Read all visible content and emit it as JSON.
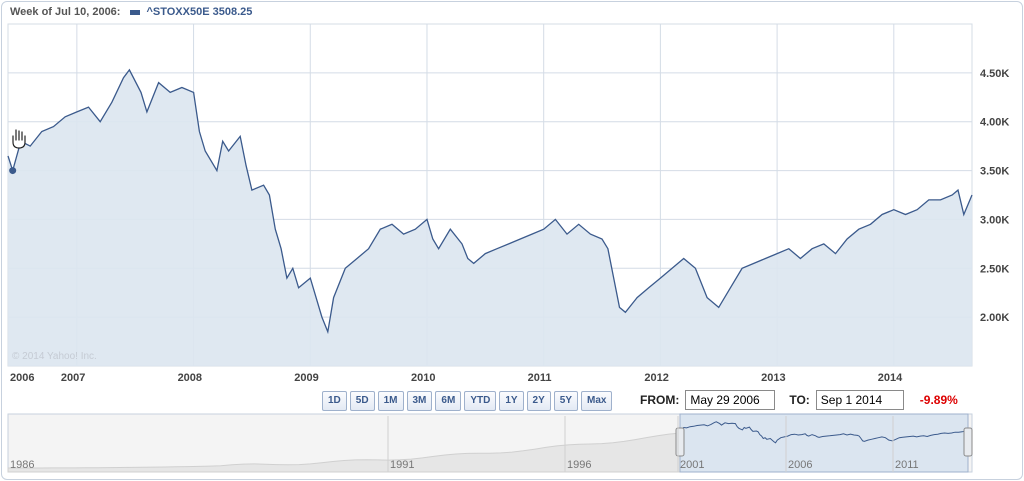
{
  "header": {
    "week_label": "Week of Jul 10, 2006:",
    "series_label": "^STOXX50E 3508.25",
    "series_color": "#3b5a8c"
  },
  "copyright": "© 2014 Yahoo! Inc.",
  "range_buttons": [
    "1D",
    "5D",
    "1M",
    "3M",
    "6M",
    "YTD",
    "1Y",
    "2Y",
    "5Y",
    "Max"
  ],
  "range": {
    "from_label": "FROM:",
    "from_value": "May 29 2006",
    "to_label": "TO:",
    "to_value": "Sep 1 2014",
    "change": "-9.89%"
  },
  "colors": {
    "line": "#3b5a8c",
    "fill": "#dbe5f0",
    "grid": "#d4dce6",
    "navigator_fill": "#e6e6e6",
    "change": "#dd0000"
  },
  "chart_data": {
    "type": "area",
    "x_ticks": [
      "2006",
      "2007",
      "2008",
      "2009",
      "2010",
      "2011",
      "2012",
      "2013",
      "2014"
    ],
    "x_tick_years": [
      2006.4,
      2007.0,
      2008.0,
      2009.0,
      2010.0,
      2011.0,
      2012.0,
      2013.0,
      2014.0
    ],
    "y_ticks": [
      "2.00K",
      "2.50K",
      "3.00K",
      "3.50K",
      "4.00K",
      "4.50K"
    ],
    "y_tick_values": [
      2000,
      2500,
      3000,
      3500,
      4000,
      4500
    ],
    "xlim": [
      2006.41,
      2014.67
    ],
    "ylim": [
      1500,
      5000
    ],
    "grid": true,
    "x": [
      2006.41,
      2006.45,
      2006.52,
      2006.6,
      2006.7,
      2006.8,
      2006.9,
      2007.0,
      2007.1,
      2007.2,
      2007.3,
      2007.4,
      2007.45,
      2007.55,
      2007.6,
      2007.7,
      2007.8,
      2007.9,
      2008.0,
      2008.05,
      2008.1,
      2008.2,
      2008.25,
      2008.3,
      2008.4,
      2008.45,
      2008.5,
      2008.6,
      2008.65,
      2008.7,
      2008.75,
      2008.8,
      2008.85,
      2008.9,
      2009.0,
      2009.1,
      2009.15,
      2009.2,
      2009.3,
      2009.4,
      2009.5,
      2009.6,
      2009.7,
      2009.8,
      2009.9,
      2010.0,
      2010.05,
      2010.1,
      2010.2,
      2010.3,
      2010.35,
      2010.4,
      2010.5,
      2010.6,
      2010.7,
      2010.8,
      2010.9,
      2011.0,
      2011.1,
      2011.2,
      2011.3,
      2011.4,
      2011.5,
      2011.55,
      2011.6,
      2011.65,
      2011.7,
      2011.8,
      2011.9,
      2012.0,
      2012.1,
      2012.2,
      2012.3,
      2012.4,
      2012.5,
      2012.6,
      2012.7,
      2012.8,
      2012.9,
      2013.0,
      2013.1,
      2013.2,
      2013.3,
      2013.4,
      2013.5,
      2013.6,
      2013.7,
      2013.8,
      2013.9,
      2014.0,
      2014.1,
      2014.2,
      2014.3,
      2014.4,
      2014.5,
      2014.55,
      2014.6,
      2014.67
    ],
    "y": [
      3650,
      3500,
      3800,
      3750,
      3900,
      3950,
      4050,
      4100,
      4150,
      4000,
      4200,
      4450,
      4530,
      4300,
      4100,
      4400,
      4300,
      4350,
      4300,
      3900,
      3700,
      3500,
      3800,
      3700,
      3850,
      3550,
      3300,
      3350,
      3250,
      2900,
      2700,
      2400,
      2500,
      2300,
      2400,
      2000,
      1850,
      2200,
      2500,
      2600,
      2700,
      2900,
      2950,
      2850,
      2900,
      3000,
      2800,
      2700,
      2900,
      2750,
      2600,
      2550,
      2650,
      2700,
      2750,
      2800,
      2850,
      2900,
      3000,
      2850,
      2950,
      2850,
      2800,
      2700,
      2400,
      2100,
      2050,
      2200,
      2300,
      2400,
      2500,
      2600,
      2500,
      2200,
      2100,
      2300,
      2500,
      2550,
      2600,
      2650,
      2700,
      2600,
      2700,
      2750,
      2650,
      2800,
      2900,
      2950,
      3050,
      3100,
      3050,
      3100,
      3200,
      3200,
      3250,
      3300,
      3050,
      3250
    ]
  },
  "navigator": {
    "labels": [
      "1986",
      "1991",
      "1996",
      "2001",
      "2006",
      "2011"
    ]
  }
}
